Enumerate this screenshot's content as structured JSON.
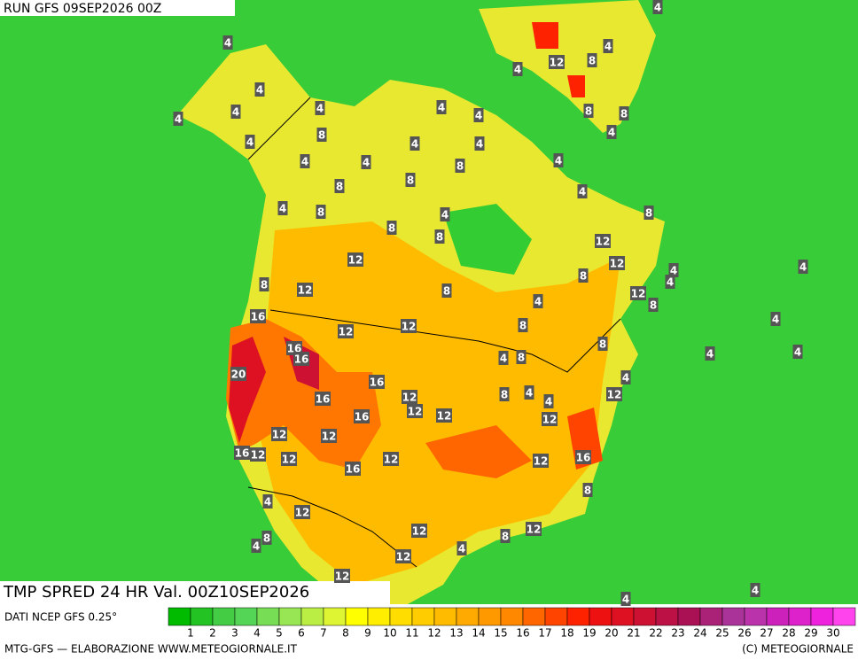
{
  "run_label": "RUN GFS 09SEP2026 00Z",
  "map_title": "TMP SPRED 24 HR Val. 00Z10SEP2026",
  "source": "DATI NCEP GFS 0.25°",
  "footer_left": "MTG-GFS — ELABORAZIONE WWW.METEOGIORNALE.IT",
  "footer_right": "(C) METEOGIORNALE",
  "colorbar": {
    "ticks": [
      1,
      2,
      3,
      4,
      5,
      6,
      7,
      8,
      9,
      10,
      11,
      12,
      13,
      14,
      15,
      16,
      17,
      18,
      19,
      20,
      21,
      22,
      23,
      24,
      25,
      26,
      27,
      28,
      29,
      30
    ],
    "colors": [
      "#00bb00",
      "#22c322",
      "#44cc44",
      "#55d555",
      "#77dd55",
      "#99e655",
      "#bbee44",
      "#ddf533",
      "#ffff00",
      "#ffee00",
      "#ffdd00",
      "#ffcc00",
      "#ffbb00",
      "#ffaa00",
      "#ff9900",
      "#ff8800",
      "#ff6600",
      "#ff4400",
      "#ff2200",
      "#ee1111",
      "#dd1122",
      "#cc1133",
      "#bb1144",
      "#aa1155",
      "#aa2277",
      "#aa3399",
      "#bb33aa",
      "#cc22bb",
      "#dd22cc",
      "#ee22dd",
      "#ff44ee"
    ]
  },
  "map_labels": [
    "4",
    "4",
    "4",
    "12",
    "8",
    "4",
    "4",
    "4",
    "4",
    "4",
    "4",
    "4",
    "8",
    "8",
    "8",
    "4",
    "4",
    "4",
    "4",
    "4",
    "4",
    "8",
    "4",
    "8",
    "8",
    "4",
    "4",
    "8",
    "4",
    "8",
    "8",
    "8",
    "12",
    "12",
    "12",
    "4",
    "8",
    "8",
    "4",
    "12",
    "8",
    "4",
    "12",
    "4",
    "8",
    "16",
    "4",
    "12",
    "8",
    "12",
    "16",
    "8",
    "16",
    "4",
    "8",
    "4",
    "4",
    "4",
    "20",
    "16",
    "12",
    "16",
    "8",
    "4",
    "12",
    "4",
    "12",
    "12",
    "16",
    "12",
    "12",
    "12",
    "16",
    "12",
    "12",
    "12",
    "12",
    "16",
    "16",
    "8",
    "4",
    "12",
    "12",
    "12",
    "8",
    "8",
    "4",
    "4",
    "12",
    "12",
    "4",
    "4"
  ]
}
